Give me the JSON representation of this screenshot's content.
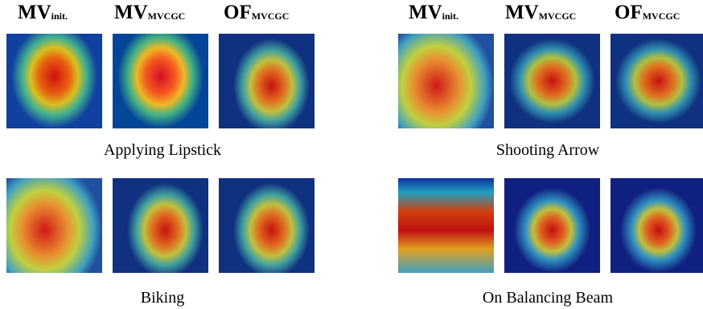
{
  "left_headers": [
    {
      "main": "MV",
      "sub": "init."
    },
    {
      "main": "MV",
      "sub": "MVCGC"
    },
    {
      "main": "OF",
      "sub": "MVCGC"
    }
  ],
  "right_headers": [
    {
      "main": "MV",
      "sub": "init."
    },
    {
      "main": "MV",
      "sub": "MVCGC"
    },
    {
      "main": "OF",
      "sub": "MVCGC"
    }
  ],
  "rows": [
    {
      "left_caption": "Applying Lipstick",
      "right_caption": "Shooting Arrow"
    },
    {
      "left_caption": "Biking",
      "right_caption": "On Balancing Beam"
    }
  ]
}
